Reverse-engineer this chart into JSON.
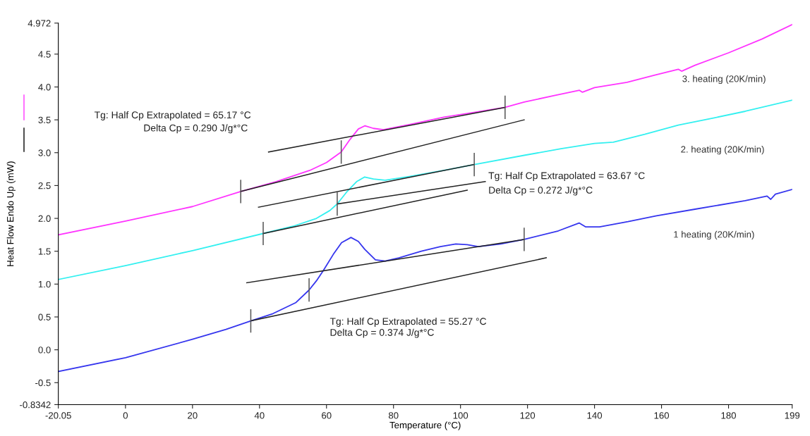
{
  "chart_data": {
    "type": "line",
    "xlabel": "Temperature (°C)",
    "ylabel": "Heat Flow Endo Up (mW)",
    "xlim": [
      -20.05,
      199
    ],
    "xticks": [
      -20.05,
      0,
      20,
      40,
      60,
      80,
      100,
      120,
      140,
      160,
      180,
      199
    ],
    "ylim": [
      -0.8342,
      4.972
    ],
    "yticks": [
      -0.8342,
      -0.5,
      {
        "value": 0,
        "label": "0.0"
      },
      0.5,
      {
        "value": 1,
        "label": "1.0"
      },
      1.5,
      {
        "value": 2,
        "label": "2.0"
      },
      2.5,
      {
        "value": 3,
        "label": "3.0"
      },
      3.5,
      {
        "value": 4,
        "label": "4.0"
      },
      4.5,
      4.972
    ],
    "grid": false,
    "legend": false,
    "series": [
      {
        "name": "3. heating (20K/min)",
        "color": "#ff33ff",
        "x": [
          -20.05,
          0,
          20,
          34.4,
          45,
          55,
          60,
          64.4,
          67,
          69.5,
          71.5,
          74,
          77,
          85,
          95,
          105,
          113.3,
          119,
          128,
          135.5,
          136.4,
          140,
          149.7,
          158,
          165,
          166,
          170,
          180,
          190,
          199
        ],
        "values": [
          1.75,
          1.96,
          2.18,
          2.41,
          2.56,
          2.73,
          2.85,
          3.01,
          3.2,
          3.36,
          3.41,
          3.37,
          3.35,
          3.43,
          3.54,
          3.62,
          3.69,
          3.77,
          3.87,
          3.95,
          3.92,
          3.99,
          4.07,
          4.18,
          4.27,
          4.24,
          4.33,
          4.52,
          4.73,
          4.95
        ]
      },
      {
        "name": "2. heating (20K/min)",
        "color": "#33f0f0",
        "x": [
          -20.05,
          0,
          20,
          41.1,
          50,
          57,
          61,
          63.2,
          66,
          69,
          71.4,
          74,
          77.5,
          85,
          95,
          104.1,
          119,
          130,
          140,
          145.6,
          155,
          165,
          175.7,
          185,
          199
        ],
        "values": [
          1.07,
          1.28,
          1.51,
          1.77,
          1.88,
          2.0,
          2.12,
          2.22,
          2.4,
          2.56,
          2.63,
          2.6,
          2.58,
          2.64,
          2.73,
          2.82,
          2.96,
          3.06,
          3.14,
          3.16,
          3.28,
          3.42,
          3.53,
          3.63,
          3.8
        ]
      },
      {
        "name": "1 heating (20K/min)",
        "color": "#3535ee",
        "x": [
          -20.05,
          0,
          20,
          30,
          37.4,
          44,
          50.9,
          54.8,
          57,
          59.1,
          62,
          64.5,
          67.3,
          69.5,
          71.4,
          74.6,
          77.5,
          81.6,
          88.3,
          94,
          98.6,
          102,
          105.3,
          112,
          119,
          129.2,
          135.4,
          137.4,
          141.5,
          150,
          158.5,
          170,
          185,
          191.5,
          192.6,
          194,
          199
        ],
        "values": [
          -0.33,
          -0.12,
          0.16,
          0.31,
          0.44,
          0.55,
          0.72,
          0.91,
          1.05,
          1.21,
          1.45,
          1.63,
          1.71,
          1.65,
          1.53,
          1.37,
          1.35,
          1.4,
          1.5,
          1.57,
          1.61,
          1.6,
          1.57,
          1.61,
          1.68,
          1.81,
          1.93,
          1.87,
          1.87,
          1.95,
          2.04,
          2.14,
          2.27,
          2.34,
          2.29,
          2.37,
          2.44
        ]
      },
      {
        "color": "#222222",
        "x": [
          42.7,
          113.3,
          null,
          34.4,
          119.0,
          null,
          39.7,
          104.1,
          null,
          63.2,
          107.4,
          null,
          41.1,
          102.0,
          null,
          36.2,
          119.0,
          null,
          37.4,
          125.6
        ],
        "values": [
          3.01,
          3.69,
          null,
          2.41,
          3.5,
          null,
          2.17,
          2.82,
          null,
          2.22,
          2.56,
          null,
          1.77,
          2.43,
          null,
          1.02,
          1.68,
          null,
          0.44,
          1.4
        ]
      },
      {
        "color": "#555555",
        "x": [
          34.4,
          34.4,
          null,
          64.4,
          64.4,
          null,
          113.3,
          113.3,
          null,
          41.1,
          41.1,
          null,
          63.2,
          63.2,
          null,
          104.1,
          104.1,
          null,
          37.4,
          37.4,
          null,
          54.8,
          54.8,
          null,
          119.0,
          119.0
        ],
        "values": [
          2.24,
          2.58,
          null,
          2.84,
          3.18,
          null,
          3.52,
          3.86,
          null,
          1.6,
          1.94,
          null,
          2.05,
          2.39,
          null,
          2.65,
          2.99,
          null,
          0.27,
          0.61,
          null,
          0.74,
          1.08,
          null,
          1.51,
          1.85
        ]
      }
    ],
    "annotations": [
      "Tg: Half Cp Extrapolated = 65.17 °C",
      "Delta Cp = 0.290 J/g*°C",
      "Tg: Half Cp Extrapolated = 63.67 °C",
      "Delta Cp = 0.272 J/g*°C",
      "Tg: Half Cp Extrapolated = 55.27 °C",
      "Delta Cp = 0.374 J/g*°C"
    ]
  }
}
